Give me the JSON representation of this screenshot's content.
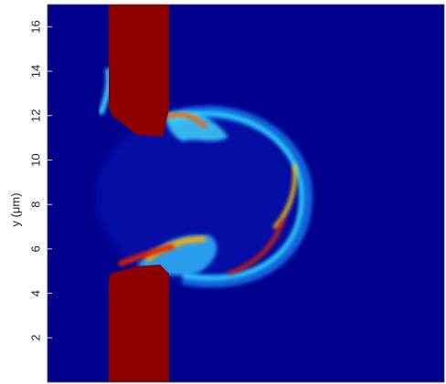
{
  "chart_data": {
    "type": "image",
    "ylabel": "y (μm)",
    "ylim": [
      0,
      17
    ],
    "yticks": [
      2,
      4,
      6,
      8,
      10,
      12,
      14,
      16
    ]
  }
}
